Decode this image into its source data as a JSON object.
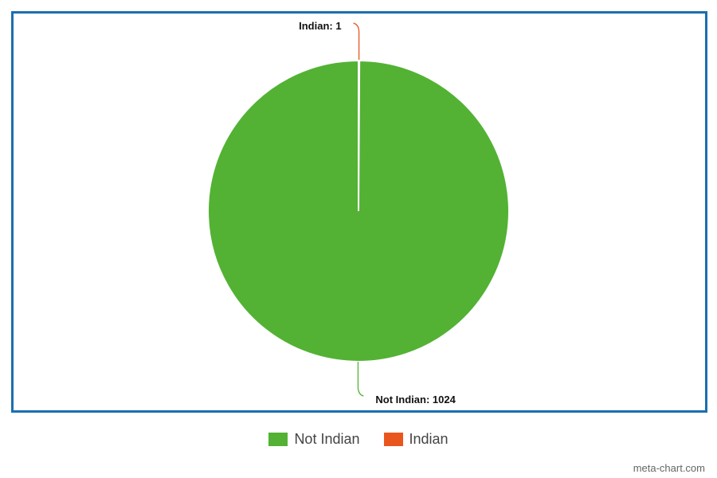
{
  "chart_data": {
    "type": "pie",
    "slices": [
      {
        "name": "Indian",
        "value": 1,
        "label": "Indian: 1",
        "color": "#e8561e"
      },
      {
        "name": "Not Indian",
        "value": 1024,
        "label": "Not Indian: 1024",
        "color": "#53b234"
      }
    ],
    "legend": [
      "Not Indian",
      "Indian"
    ],
    "legend_position": "bottom",
    "frame_color": "#1a6fb0"
  },
  "credit": "meta-chart.com"
}
